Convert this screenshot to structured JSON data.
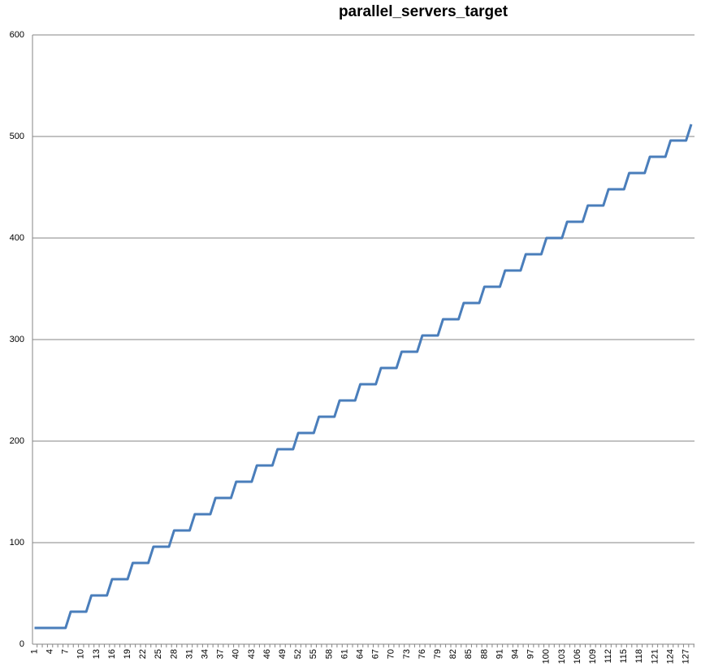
{
  "chart_data": {
    "type": "line",
    "title": "parallel_servers_target",
    "categories": [
      "1",
      null,
      null,
      "4",
      null,
      null,
      "7",
      null,
      null,
      "10",
      null,
      null,
      "13",
      null,
      null,
      "16",
      null,
      null,
      "19",
      null,
      null,
      "22",
      null,
      null,
      "25",
      null,
      null,
      "28",
      null,
      null,
      "31",
      null,
      null,
      "34",
      null,
      null,
      "37",
      null,
      null,
      "40",
      null,
      null,
      "43",
      null,
      null,
      "46",
      null,
      null,
      "49",
      null,
      null,
      "52",
      null,
      null,
      "55",
      null,
      null,
      "58",
      null,
      null,
      "61",
      null,
      null,
      "64",
      null,
      null,
      "67",
      null,
      null,
      "70",
      null,
      null,
      "73",
      null,
      null,
      "76",
      null,
      null,
      "79",
      null,
      null,
      "82",
      null,
      null,
      "85",
      null,
      null,
      "88",
      null,
      null,
      "91",
      null,
      null,
      "94",
      null,
      null,
      "97",
      null,
      null,
      "100",
      null,
      null,
      "103",
      null,
      null,
      "106",
      null,
      null,
      "109",
      null,
      null,
      "112",
      null,
      null,
      "115",
      null,
      null,
      "118",
      null,
      null,
      "121",
      null,
      null,
      "124",
      null,
      null,
      "127",
      null
    ],
    "values": [
      16,
      16,
      16,
      16,
      16,
      16,
      16,
      32,
      32,
      32,
      32,
      48,
      48,
      48,
      48,
      64,
      64,
      64,
      64,
      80,
      80,
      80,
      80,
      96,
      96,
      96,
      96,
      112,
      112,
      112,
      112,
      128,
      128,
      128,
      128,
      144,
      144,
      144,
      144,
      160,
      160,
      160,
      160,
      176,
      176,
      176,
      176,
      192,
      192,
      192,
      192,
      208,
      208,
      208,
      208,
      224,
      224,
      224,
      224,
      240,
      240,
      240,
      240,
      256,
      256,
      256,
      256,
      272,
      272,
      272,
      272,
      288,
      288,
      288,
      288,
      304,
      304,
      304,
      304,
      320,
      320,
      320,
      320,
      336,
      336,
      336,
      336,
      352,
      352,
      352,
      352,
      368,
      368,
      368,
      368,
      384,
      384,
      384,
      384,
      400,
      400,
      400,
      400,
      416,
      416,
      416,
      416,
      432,
      432,
      432,
      432,
      448,
      448,
      448,
      448,
      464,
      464,
      464,
      464,
      480,
      480,
      480,
      480,
      496,
      496,
      496,
      496,
      512
    ],
    "color": "#4a7ebb",
    "ylim": [
      0,
      600
    ],
    "yticks": [
      0,
      100,
      200,
      300,
      400,
      500,
      600
    ],
    "grid": true
  }
}
